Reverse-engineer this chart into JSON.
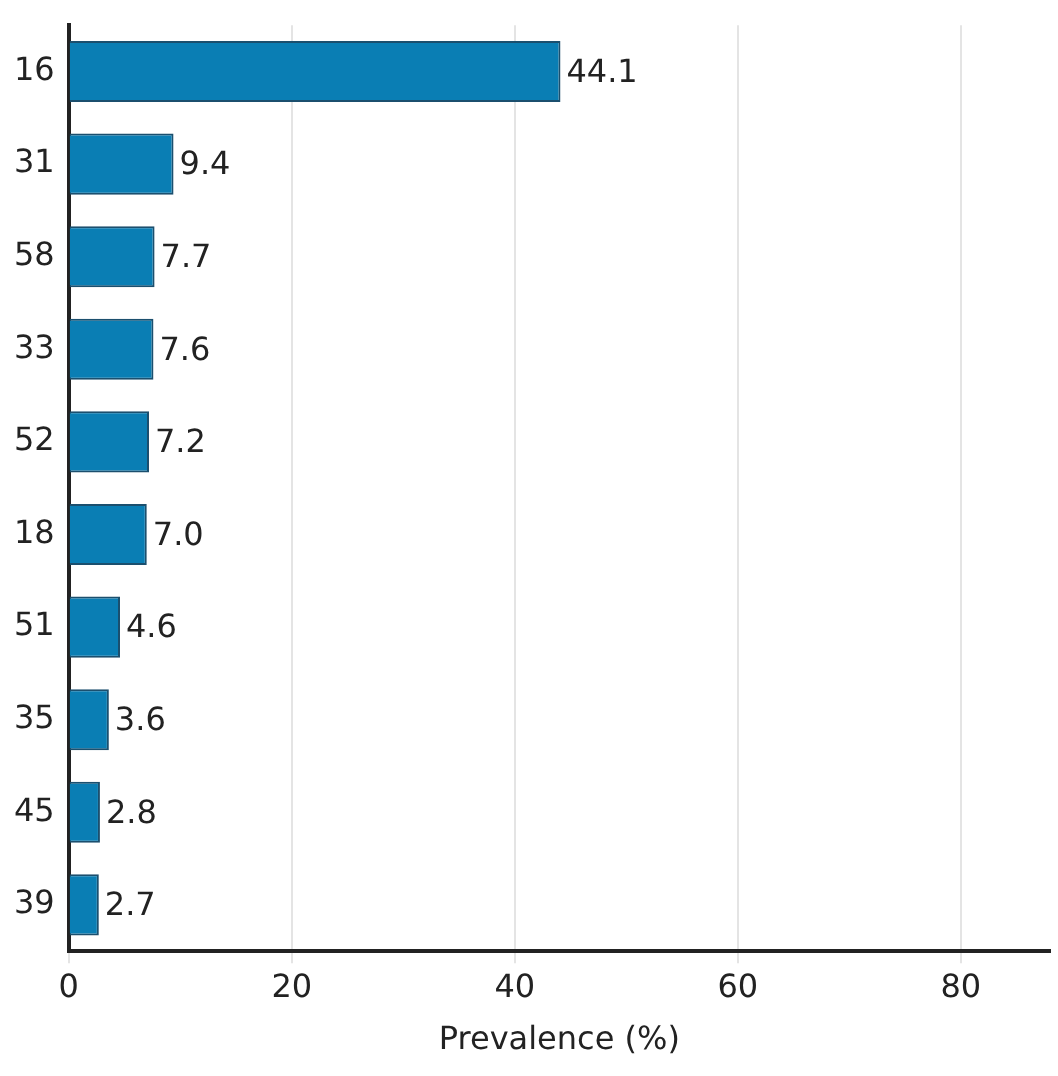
{
  "chart_data": {
    "type": "bar",
    "orientation": "horizontal",
    "xlabel": "Prevalence (%)",
    "categories": [
      "16",
      "31",
      "58",
      "33",
      "52",
      "18",
      "51",
      "35",
      "45",
      "39"
    ],
    "values": [
      44.1,
      9.4,
      7.7,
      7.6,
      7.2,
      7.0,
      4.6,
      3.6,
      2.8,
      2.7
    ],
    "value_labels": [
      "44.1",
      "9.4",
      "7.7",
      "7.6",
      "7.2",
      "7.0",
      "4.6",
      "3.6",
      "2.8",
      "2.7"
    ],
    "color": "#0a7eb4",
    "xlim": [
      0,
      88
    ],
    "xticks": [
      0,
      20,
      40,
      60,
      80
    ],
    "grid": "x",
    "legend": false
  }
}
